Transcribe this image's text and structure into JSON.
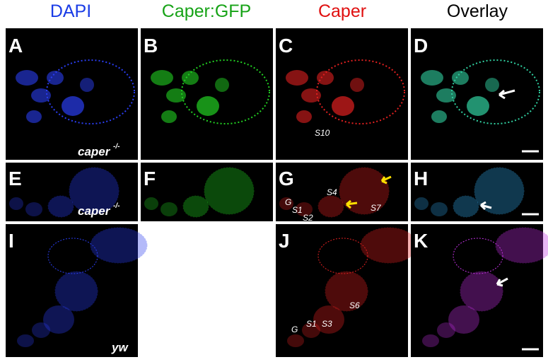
{
  "headers": [
    "DAPI",
    "Caper:GFP",
    "Caper",
    "Overlay"
  ],
  "panels": {
    "A": {
      "letter": "A",
      "genotype": "caper",
      "genotype_sup": "-/-"
    },
    "B": {
      "letter": "B"
    },
    "C": {
      "letter": "C",
      "stages": [
        "S10"
      ]
    },
    "D": {
      "letter": "D"
    },
    "E": {
      "letter": "E",
      "genotype": "caper",
      "genotype_sup": "-/-"
    },
    "F": {
      "letter": "F"
    },
    "G": {
      "letter": "G",
      "stages": [
        "G",
        "S1",
        "S2",
        "S4",
        "S7"
      ]
    },
    "H": {
      "letter": "H"
    },
    "I": {
      "letter": "I",
      "genotype": "yw"
    },
    "J": {
      "letter": "J",
      "stages": [
        "G",
        "S1",
        "S3",
        "S6"
      ]
    },
    "K": {
      "letter": "K"
    }
  }
}
